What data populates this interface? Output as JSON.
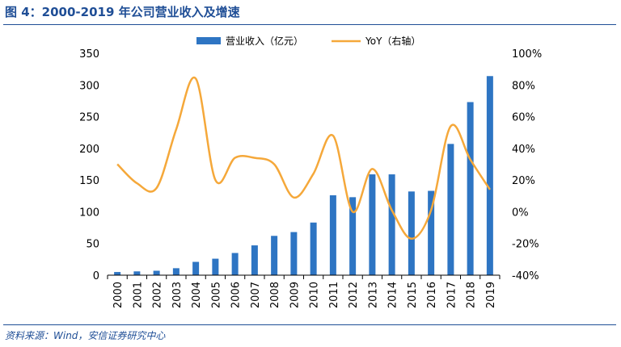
{
  "header": {
    "title": "图 4：2000-2019 年公司营业收入及增速"
  },
  "footer": {
    "source": "资料来源：Wind，安信证券研究中心"
  },
  "colors": {
    "bar": "#2e75c3",
    "line": "#f5a83a",
    "brand": "#1f4e96"
  },
  "chart_data": {
    "type": "bar+line",
    "title": "",
    "xlabel": "",
    "ylabel": "",
    "legend_position": "top",
    "grid": false,
    "categories": [
      "2000",
      "2001",
      "2002",
      "2003",
      "2004",
      "2005",
      "2006",
      "2007",
      "2008",
      "2009",
      "2010",
      "2011",
      "2012",
      "2013",
      "2014",
      "2015",
      "2016",
      "2017",
      "2018",
      "2019"
    ],
    "series": [
      {
        "name": "营业收入（亿元）",
        "type": "bar",
        "axis": "left",
        "values": [
          5,
          6,
          7,
          11,
          21,
          26,
          35,
          47,
          62,
          68,
          83,
          126,
          123,
          159,
          159,
          132,
          133,
          207,
          273,
          314
        ]
      },
      {
        "name": "YoY（右轴）",
        "type": "line",
        "axis": "right",
        "values": [
          30,
          18,
          15,
          52,
          84,
          20,
          34,
          34,
          30,
          9,
          24,
          48,
          0,
          27,
          1,
          -17,
          1,
          54,
          33,
          14
        ]
      }
    ],
    "ylim_left": [
      0,
      350
    ],
    "yticks_left": [
      "0",
      "50",
      "100",
      "150",
      "200",
      "250",
      "300",
      "350"
    ],
    "ylim_right": [
      -40,
      100
    ],
    "yticks_right": [
      "-40%",
      "-20%",
      "0%",
      "20%",
      "40%",
      "60%",
      "80%",
      "100%"
    ]
  }
}
